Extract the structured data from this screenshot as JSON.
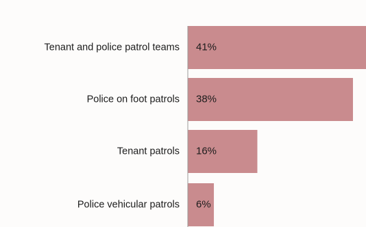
{
  "chart_data": {
    "type": "bar",
    "orientation": "horizontal",
    "title": "",
    "xlabel": "",
    "ylabel": "",
    "categories": [
      "Tenant and police patrol teams",
      "Police on foot patrols",
      "Tenant patrols",
      "Police vehicular patrols"
    ],
    "values": [
      41,
      38,
      16,
      6
    ],
    "value_labels": [
      "41%",
      "38%",
      "16%",
      "6%"
    ],
    "unit": "%",
    "xlim": [
      0,
      41
    ],
    "grid": false,
    "legend": "none",
    "colors": {
      "bar": "#c98b8e",
      "axis": "#9a9a9a",
      "text": "#1c1c1c",
      "background": "#fdfcfb"
    }
  }
}
